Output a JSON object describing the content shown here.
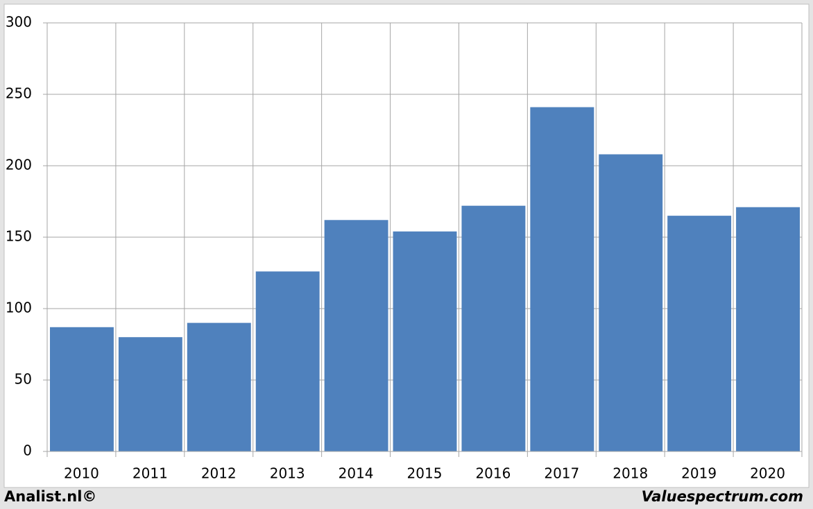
{
  "chart_data": {
    "type": "bar",
    "categories": [
      "2010",
      "2011",
      "2012",
      "2013",
      "2014",
      "2015",
      "2016",
      "2017",
      "2018",
      "2019",
      "2020"
    ],
    "values": [
      87,
      80,
      90,
      126,
      162,
      154,
      172,
      241,
      208,
      165,
      171
    ],
    "color": "#4f81bd",
    "ylim": [
      0,
      300
    ],
    "yticks": [
      0,
      50,
      100,
      150,
      200,
      250,
      300
    ],
    "grid": true
  },
  "footer": {
    "left": "Analist.nl©",
    "right": "Valuespectrum.com"
  }
}
